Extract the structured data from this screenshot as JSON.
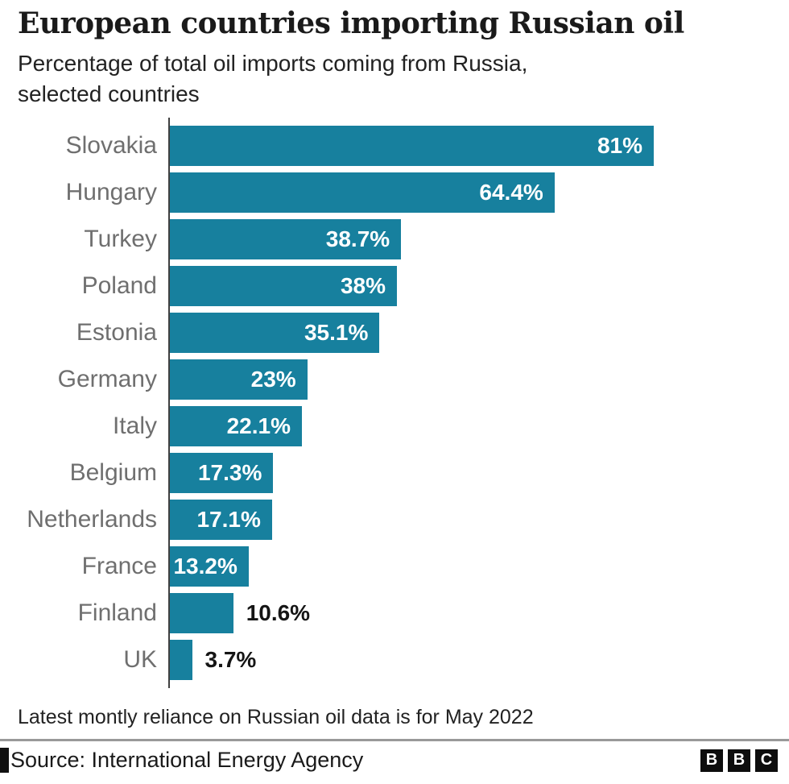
{
  "header": {
    "title": "European countries importing Russian oil",
    "subtitle": "Percentage of total oil imports coming from Russia, selected countries"
  },
  "chart_data": {
    "type": "bar",
    "orientation": "horizontal",
    "title": "European countries importing Russian oil",
    "subtitle": "Percentage of total oil imports coming from Russia, selected countries",
    "categories": [
      "Slovakia",
      "Hungary",
      "Turkey",
      "Poland",
      "Estonia",
      "Germany",
      "Italy",
      "Belgium",
      "Netherlands",
      "France",
      "Finland",
      "UK"
    ],
    "values": [
      81,
      64.4,
      38.7,
      38,
      35.1,
      23,
      22.1,
      17.3,
      17.1,
      13.2,
      10.6,
      3.7
    ],
    "value_labels": [
      "81%",
      "64.4%",
      "38.7%",
      "38%",
      "35.1%",
      "23%",
      "22.1%",
      "17.3%",
      "17.1%",
      "13.2%",
      "10.6%",
      "3.7%"
    ],
    "xlabel": "",
    "ylabel": "",
    "xlim": [
      0,
      100
    ],
    "grid": false,
    "legend": false,
    "bar_color": "#17809E",
    "label_color": "#6f6f6f",
    "value_label_inside_color": "#ffffff",
    "value_label_outside_color": "#151515"
  },
  "footer": {
    "note": "Latest montly reliance on Russian oil data is for May 2022",
    "source": "Source: International Energy Agency"
  },
  "logo": {
    "letters": [
      "B",
      "B",
      "C"
    ]
  }
}
